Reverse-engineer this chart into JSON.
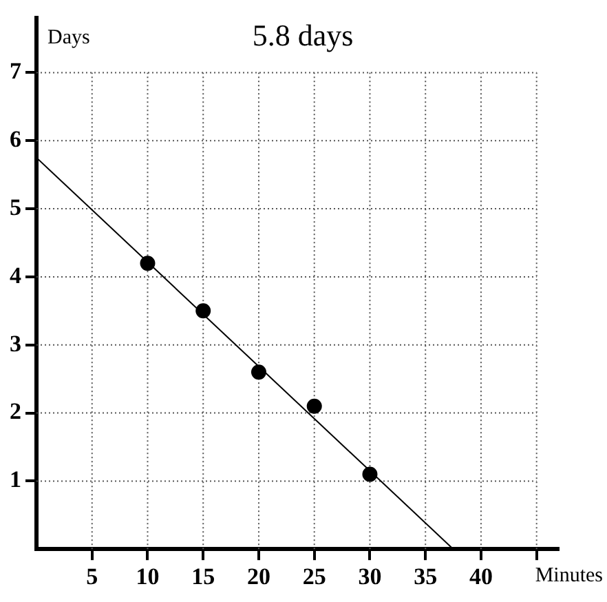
{
  "chart_data": {
    "type": "scatter",
    "xlabel": "Minutes",
    "ylabel": "Days",
    "annotations": [
      "5.8 days"
    ],
    "xlim": [
      0,
      47
    ],
    "ylim": [
      0,
      7.8
    ],
    "xticks": [
      5,
      10,
      15,
      20,
      25,
      30,
      35,
      40,
      {
        "value": 45,
        "label": null
      }
    ],
    "yticks": [
      1,
      2,
      3,
      4,
      5,
      6,
      7
    ],
    "grid": true,
    "marker": "circle",
    "series": [
      {
        "color": "#000000",
        "x": [
          10,
          15,
          20,
          25,
          30
        ],
        "values": [
          4.2,
          3.5,
          2.6,
          2.1,
          1.1
        ]
      },
      {
        "type": "line",
        "color": "#000000",
        "marker": "none",
        "x": [
          0,
          37.5
        ],
        "values": [
          5.75,
          0
        ]
      }
    ]
  }
}
